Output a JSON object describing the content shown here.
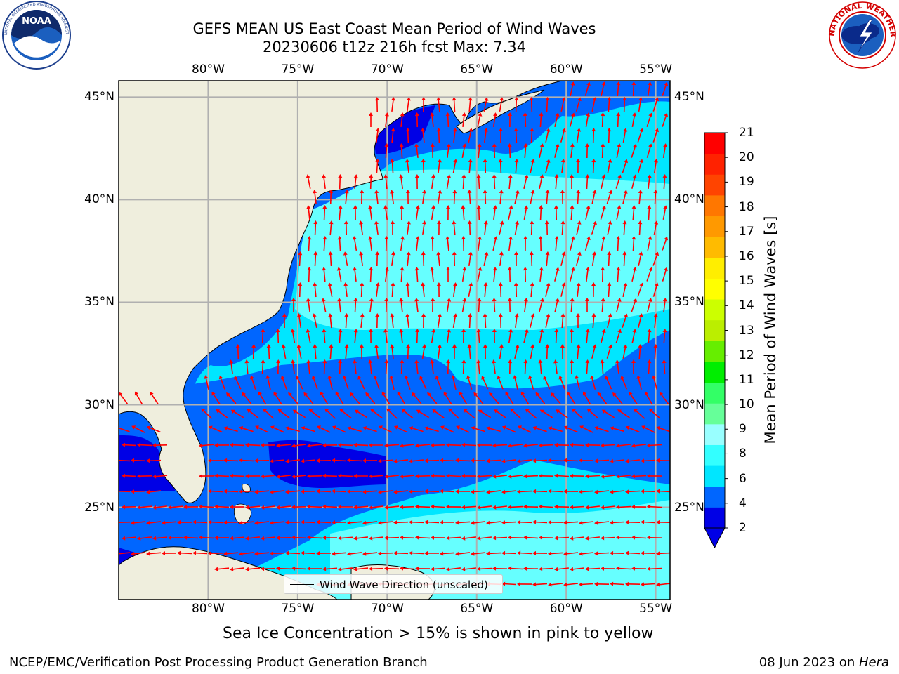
{
  "title_line1": "GEFS MEAN US East Coast Mean Period of Wind Waves",
  "title_line2": "20230606 t12z 216h fcst   Max: 7.34",
  "logos": {
    "noaa": {
      "text": "NOAA",
      "ring_text": "NATIONAL OCEANIC AND ATMOSPHERIC ADMINISTRATION · U.S. DEPARTMENT OF COMMERCE"
    },
    "nws": {
      "ring_text": "NATIONAL WEATHER SERVICE"
    }
  },
  "map": {
    "lon_labels": [
      "80°W",
      "75°W",
      "70°W",
      "65°W",
      "60°W",
      "55°W"
    ],
    "lat_labels": [
      "45°N",
      "40°N",
      "35°N",
      "30°N",
      "25°N"
    ],
    "lon_values": [
      -80,
      -75,
      -70,
      -65,
      -60,
      -55
    ],
    "lat_values": [
      45,
      40,
      35,
      30,
      25
    ],
    "extent": {
      "lon_min": -85,
      "lon_max": -54.2,
      "lat_min": 20.5,
      "lat_max": 45.8
    },
    "colors": {
      "land": "#efeedd",
      "coast": "#000000",
      "grid": "#b0b0b0",
      "arrow": "#ff0000",
      "frame": "#000000"
    }
  },
  "colorbar": {
    "title": "Mean Period of Wind Waves [s]",
    "labels": [
      "21",
      "20",
      "19",
      "18",
      "17",
      "16",
      "15",
      "14",
      "13",
      "12",
      "11",
      "10",
      "9",
      "8",
      "6",
      "4",
      "2"
    ],
    "colors": [
      "#0000e6",
      "#0066ff",
      "#00e6ff",
      "#33ffff",
      "#99ffff",
      "#66ff99",
      "#33ff66",
      "#00ee00",
      "#66ee00",
      "#bbee00",
      "#ccff00",
      "#ffff00",
      "#ffee00",
      "#ffbb00",
      "#ff9900",
      "#ff7700",
      "#ff4400",
      "#ff2200",
      "#ff0000"
    ],
    "extend_color": "#0000e6"
  },
  "legend_label": "Wind Wave Direction (unscaled)",
  "note": "Sea Ice Concentration > 15% is shown in pink to yellow",
  "footer": {
    "left": "NCEP/EMC/Verification Post Processing Product Generation Branch",
    "date": "08 Jun 2023 on ",
    "machine": "Hera"
  }
}
